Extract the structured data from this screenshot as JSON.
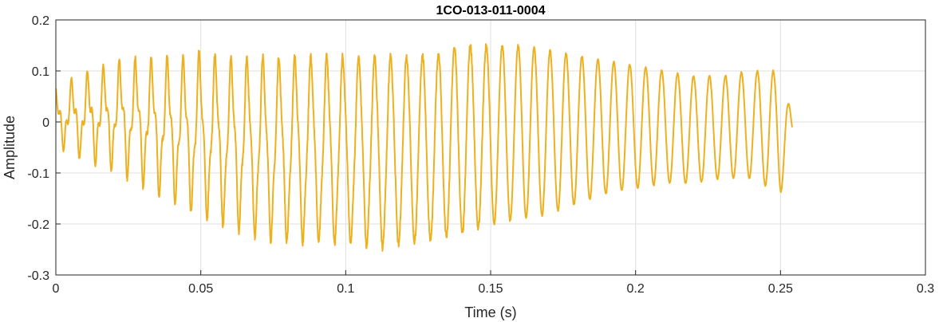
{
  "chart_data": {
    "type": "line",
    "title": "1CO-013-011-0004",
    "xlabel": "Time (s)",
    "ylabel": "Amplitude",
    "xlim": [
      0,
      0.3
    ],
    "ylim": [
      -0.3,
      0.2
    ],
    "xticks": [
      {
        "value": 0,
        "label": "0"
      },
      {
        "value": 0.05,
        "label": "0.05"
      },
      {
        "value": 0.1,
        "label": "0.1"
      },
      {
        "value": 0.15,
        "label": "0.15"
      },
      {
        "value": 0.2,
        "label": "0.2"
      },
      {
        "value": 0.25,
        "label": "0.25"
      },
      {
        "value": 0.3,
        "label": "0.3"
      }
    ],
    "yticks": [
      {
        "value": -0.3,
        "label": "-0.3"
      },
      {
        "value": -0.2,
        "label": "-0.2"
      },
      {
        "value": -0.1,
        "label": "-0.1"
      },
      {
        "value": 0,
        "label": "0"
      },
      {
        "value": 0.1,
        "label": "0.1"
      },
      {
        "value": 0.2,
        "label": "0.2"
      }
    ],
    "grid": true,
    "legend": "none",
    "series": [
      {
        "color": "#EDB120",
        "envelope": {
          "t": [
            0,
            0.01,
            0.02,
            0.03,
            0.04,
            0.05,
            0.06,
            0.07,
            0.08,
            0.09,
            0.1,
            0.11,
            0.12,
            0.13,
            0.14,
            0.15,
            0.16,
            0.17,
            0.18,
            0.19,
            0.2,
            0.21,
            0.22,
            0.23,
            0.24,
            0.25,
            0.254
          ],
          "max": [
            0.07,
            0.1,
            0.12,
            0.13,
            0.13,
            0.14,
            0.13,
            0.13,
            0.13,
            0.13,
            0.13,
            0.13,
            0.13,
            0.13,
            0.15,
            0.15,
            0.15,
            0.14,
            0.13,
            0.12,
            0.11,
            0.1,
            0.09,
            0.09,
            0.1,
            0.1,
            0.01
          ],
          "min": [
            -0.05,
            -0.08,
            -0.1,
            -0.13,
            -0.16,
            -0.19,
            -0.21,
            -0.23,
            -0.24,
            -0.24,
            -0.24,
            -0.25,
            -0.24,
            -0.23,
            -0.22,
            -0.2,
            -0.19,
            -0.18,
            -0.16,
            -0.14,
            -0.13,
            -0.12,
            -0.12,
            -0.11,
            -0.11,
            -0.14,
            -0.06
          ]
        },
        "cycle_period_s": 0.0055,
        "t_start": 0,
        "t_end": 0.254
      }
    ]
  }
}
